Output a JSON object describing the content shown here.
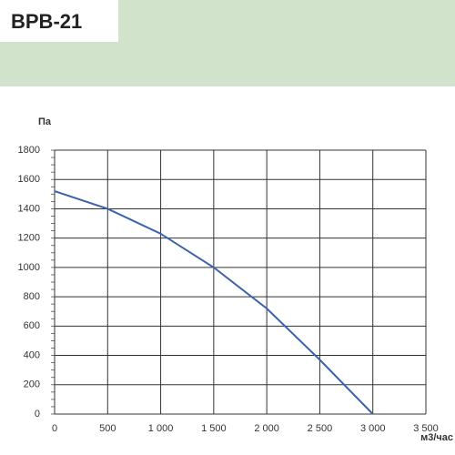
{
  "chart_data": {
    "type": "line",
    "title": "ВРВ-21",
    "x_label": "м3/час",
    "y_label": "Па",
    "x": [
      0,
      500,
      1000,
      1500,
      2000,
      2500,
      3000
    ],
    "series": [
      {
        "name": "ВРВ-21",
        "color": "#3a62ad",
        "values": [
          1520,
          1400,
          1230,
          1000,
          720,
          370,
          0
        ]
      }
    ],
    "xlim": [
      0,
      3500
    ],
    "xticks": [
      0,
      500,
      {
        "value": 1000,
        "label": "1 000"
      },
      {
        "value": 1500,
        "label": "1 500"
      },
      {
        "value": 2000,
        "label": "2 000"
      },
      {
        "value": 2500,
        "label": "2 500"
      },
      {
        "value": 3000,
        "label": "3 000"
      },
      {
        "value": 3500,
        "label": "3 500"
      }
    ],
    "ylim": [
      0,
      1800
    ],
    "yticks": [
      0,
      200,
      400,
      600,
      800,
      1000,
      1200,
      1400,
      1600,
      1800
    ],
    "grid": true
  }
}
